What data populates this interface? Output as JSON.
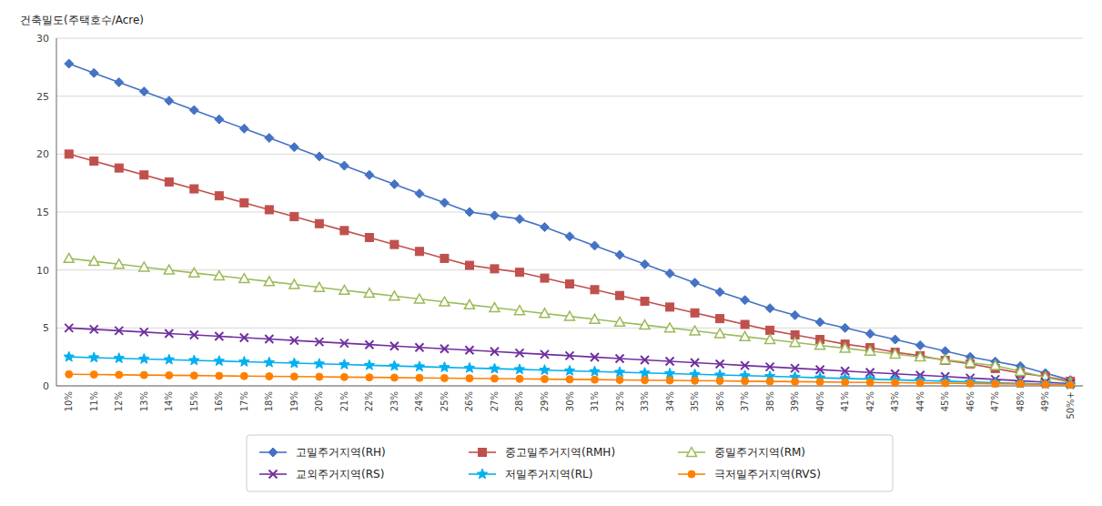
{
  "chart_data": {
    "type": "line",
    "ylabel": "건축밀도(주택호수/Acre)",
    "categories": [
      "10%",
      "11%",
      "12%",
      "13%",
      "14%",
      "15%",
      "16%",
      "17%",
      "18%",
      "19%",
      "20%",
      "21%",
      "22%",
      "23%",
      "24%",
      "25%",
      "26%",
      "27%",
      "28%",
      "29%",
      "30%",
      "31%",
      "32%",
      "33%",
      "34%",
      "35%",
      "36%",
      "37%",
      "38%",
      "39%",
      "40%",
      "41%",
      "42%",
      "43%",
      "44%",
      "45%",
      "46%",
      "47%",
      "48%",
      "49%",
      "50%+"
    ],
    "series": [
      {
        "name": "고밀주거지역(RH)",
        "color": "#4472C4",
        "marker": "diamond",
        "values": [
          27.8,
          27.0,
          26.2,
          25.4,
          24.6,
          23.8,
          23.0,
          22.2,
          21.4,
          20.6,
          19.8,
          19.0,
          18.2,
          17.4,
          16.6,
          15.8,
          15.0,
          14.7,
          14.4,
          13.7,
          12.9,
          12.1,
          11.3,
          10.5,
          9.7,
          8.9,
          8.1,
          7.4,
          6.7,
          6.1,
          5.5,
          5.0,
          4.5,
          4.0,
          3.5,
          3.0,
          2.5,
          2.1,
          1.7,
          1.1,
          0.5
        ]
      },
      {
        "name": "중고밀주거지역(RMH)",
        "color": "#C0504D",
        "marker": "square",
        "values": [
          20.0,
          19.4,
          18.8,
          18.2,
          17.6,
          17.0,
          16.4,
          15.8,
          15.2,
          14.6,
          14.0,
          13.4,
          12.8,
          12.2,
          11.6,
          11.0,
          10.4,
          10.1,
          9.8,
          9.3,
          8.8,
          8.3,
          7.8,
          7.3,
          6.8,
          6.3,
          5.8,
          5.3,
          4.8,
          4.4,
          4.0,
          3.6,
          3.3,
          2.9,
          2.6,
          2.2,
          1.9,
          1.5,
          1.1,
          0.8,
          0.4
        ]
      },
      {
        "name": "중밀주거지역(RM)",
        "color": "#9BBB59",
        "marker": "triangle",
        "values": [
          11.0,
          10.75,
          10.5,
          10.25,
          10.0,
          9.75,
          9.5,
          9.25,
          9.0,
          8.75,
          8.5,
          8.25,
          8.0,
          7.75,
          7.5,
          7.25,
          7.0,
          6.75,
          6.5,
          6.25,
          6.0,
          5.75,
          5.5,
          5.25,
          5.0,
          4.75,
          4.5,
          4.25,
          4.0,
          3.75,
          3.5,
          3.25,
          3.0,
          2.75,
          2.5,
          2.25,
          2.0,
          1.75,
          1.25,
          0.75,
          0.3
        ]
      },
      {
        "name": "교외주거지역(RS)",
        "color": "#7030A0",
        "marker": "x",
        "values": [
          5.0,
          4.88,
          4.76,
          4.64,
          4.52,
          4.4,
          4.28,
          4.16,
          4.04,
          3.92,
          3.8,
          3.68,
          3.56,
          3.44,
          3.32,
          3.2,
          3.08,
          2.96,
          2.84,
          2.72,
          2.6,
          2.48,
          2.36,
          2.24,
          2.12,
          2.0,
          1.88,
          1.76,
          1.64,
          1.52,
          1.4,
          1.28,
          1.16,
          1.04,
          0.92,
          0.8,
          0.68,
          0.56,
          0.44,
          0.32,
          0.2
        ]
      },
      {
        "name": "저밀주거지역(RL)",
        "color": "#00B0F0",
        "marker": "star",
        "values": [
          2.5,
          2.44,
          2.38,
          2.32,
          2.26,
          2.2,
          2.14,
          2.08,
          2.02,
          1.96,
          1.9,
          1.84,
          1.78,
          1.72,
          1.66,
          1.6,
          1.54,
          1.48,
          1.42,
          1.36,
          1.3,
          1.24,
          1.18,
          1.12,
          1.06,
          1.0,
          0.94,
          0.88,
          0.82,
          0.76,
          0.7,
          0.64,
          0.58,
          0.52,
          0.46,
          0.4,
          0.34,
          0.28,
          0.22,
          0.16,
          0.1
        ]
      },
      {
        "name": "극저밀주거지역(RVS)",
        "color": "#FF8000",
        "marker": "circle",
        "values": [
          1.0,
          0.978,
          0.956,
          0.934,
          0.912,
          0.89,
          0.868,
          0.846,
          0.824,
          0.802,
          0.78,
          0.758,
          0.736,
          0.714,
          0.692,
          0.67,
          0.648,
          0.626,
          0.604,
          0.582,
          0.56,
          0.538,
          0.516,
          0.494,
          0.472,
          0.45,
          0.428,
          0.406,
          0.384,
          0.362,
          0.34,
          0.318,
          0.296,
          0.274,
          0.252,
          0.23,
          0.208,
          0.186,
          0.164,
          0.12,
          0.08
        ]
      }
    ],
    "ylim": [
      0,
      30
    ],
    "yticks": [
      0,
      5,
      10,
      15,
      20,
      25,
      30
    ],
    "grid": true,
    "legend": "bottom"
  }
}
